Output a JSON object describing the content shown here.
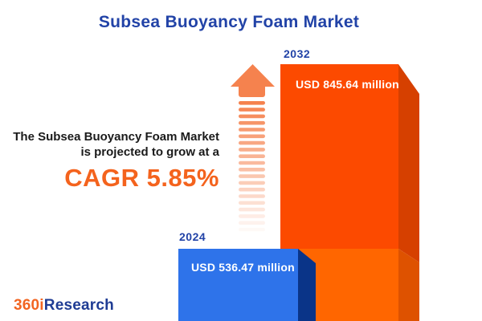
{
  "header": {
    "title": "Subsea Buoyancy Foam Market"
  },
  "annotation": {
    "line1": "The Subsea Buoyancy Foam Market",
    "line2": "is projected to grow at a",
    "cagr": "CAGR 5.85%"
  },
  "chart": {
    "bars": [
      {
        "year": "2024",
        "value_label": "USD 536.47 million"
      },
      {
        "year": "2032",
        "value_label": "USD 845.64 million"
      }
    ]
  },
  "chart_data": {
    "type": "bar",
    "categories": [
      "2024",
      "2032"
    ],
    "values": [
      536.47,
      845.64
    ],
    "value_unit": "USD million",
    "data_labels": [
      "USD 536.47 million",
      "USD 845.64 million"
    ],
    "title": "Subsea Buoyancy Foam Market",
    "annotation": "The Subsea Buoyancy Foam Market is projected to grow at a CAGR 5.85%",
    "cagr_percent": 5.85,
    "orientation": "vertical",
    "axes": "none",
    "grid": false,
    "legend": "none",
    "style": "3d-infographic-bars-with-growth-arrow",
    "series_colors": [
      "#2e73ea",
      "#fc4a00"
    ]
  },
  "logo": {
    "part1": "360i",
    "part2": "Research"
  },
  "colors": {
    "title_blue": "#2243a7",
    "text_dark": "#1a1a1a",
    "cagr_orange": "#f4631d",
    "arrow_orange": "#f5824e",
    "bar_orange": "#fc4a00",
    "bar_orange_light": "#ff6600",
    "bar_orange_side": "#d64000",
    "bar_orange_side_light": "#de5200",
    "bar_blue": "#2e73ea",
    "bar_blue_side": "#0a3488",
    "logo_orange": "#f26522",
    "logo_blue": "#1f3c94"
  },
  "stripes": {
    "count": 20
  }
}
